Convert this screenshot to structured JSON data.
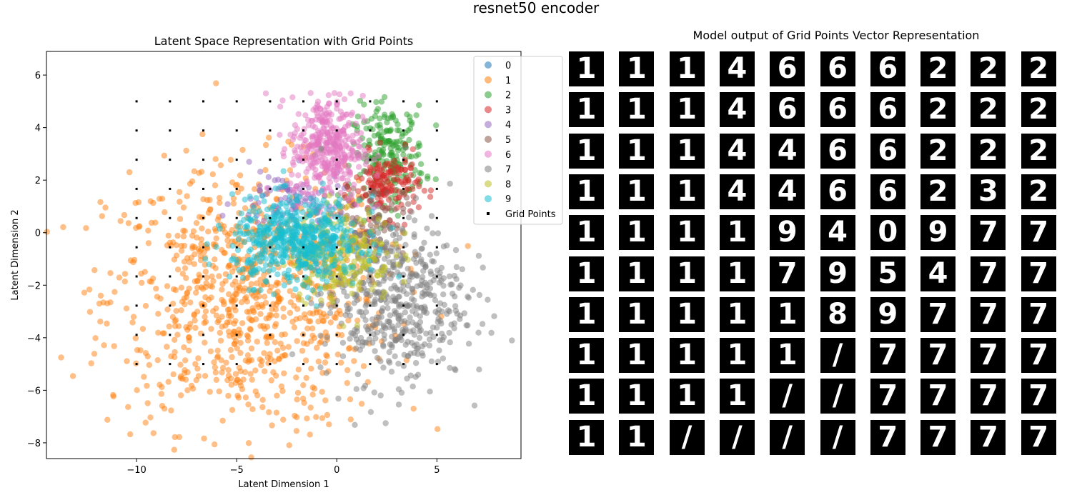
{
  "figure": {
    "suptitle": "resnet50 encoder"
  },
  "chart_data": [
    {
      "type": "scatter",
      "title": "Latent Space Representation with Grid Points",
      "xlabel": "Latent Dimension 1",
      "ylabel": "Latent Dimension 2",
      "xlim": [
        -14.5,
        9.2
      ],
      "ylim": [
        -8.6,
        6.9
      ],
      "xticks": [
        -10,
        -5,
        0,
        5
      ],
      "yticks": [
        -8,
        -6,
        -4,
        -2,
        0,
        2,
        4,
        6
      ],
      "grid": false,
      "legend_position": "top-right",
      "series": [
        {
          "name": "0",
          "color": "#1f77b4",
          "center": [
            0.5,
            -0.3
          ],
          "spread": [
            1.0,
            1.0
          ],
          "count": 10
        },
        {
          "name": "1",
          "color": "#ff7f0e",
          "center": [
            -4.5,
            -2.5
          ],
          "spread": [
            3.5,
            2.5
          ],
          "count": 900
        },
        {
          "name": "2",
          "color": "#2ca02c",
          "center": [
            2.6,
            3.0
          ],
          "spread": [
            0.9,
            0.9
          ],
          "count": 220
        },
        {
          "name": "3",
          "color": "#d62728",
          "center": [
            2.5,
            1.8
          ],
          "spread": [
            0.8,
            0.6
          ],
          "count": 160
        },
        {
          "name": "4",
          "color": "#9467bd",
          "center": [
            -2.3,
            1.2
          ],
          "spread": [
            1.4,
            0.6
          ],
          "count": 90
        },
        {
          "name": "5",
          "color": "#8c564b",
          "center": [
            1.8,
            0.5
          ],
          "spread": [
            0.8,
            0.7
          ],
          "count": 80
        },
        {
          "name": "6",
          "color": "#e377c2",
          "center": [
            -0.5,
            3.2
          ],
          "spread": [
            0.9,
            1.0
          ],
          "count": 380
        },
        {
          "name": "7",
          "color": "#7f7f7f",
          "center": [
            2.8,
            -2.5
          ],
          "spread": [
            1.8,
            1.6
          ],
          "count": 520
        },
        {
          "name": "8",
          "color": "#bcbd22",
          "center": [
            0.2,
            -0.8
          ],
          "spread": [
            1.3,
            0.9
          ],
          "count": 230
        },
        {
          "name": "9",
          "color": "#17becf",
          "center": [
            -2.0,
            -0.3
          ],
          "spread": [
            1.6,
            0.8
          ],
          "count": 560
        }
      ],
      "grid_points": {
        "name": "Grid Points",
        "color": "#000000",
        "x": [
          -10,
          -8.333,
          -6.667,
          -5,
          -3.333,
          -1.667,
          0,
          1.667,
          3.333,
          5
        ],
        "y": [
          -5,
          -3.889,
          -2.778,
          -1.667,
          -0.556,
          0.556,
          1.667,
          2.778,
          3.889,
          5
        ]
      }
    },
    {
      "type": "image_grid",
      "title": "Model output of Grid Points Vector Representation",
      "rows": 10,
      "cols": 10,
      "digits": [
        [
          "1",
          "1",
          "1",
          "4",
          "6",
          "6",
          "6",
          "2",
          "2",
          "2"
        ],
        [
          "1",
          "1",
          "1",
          "4",
          "6",
          "6",
          "6",
          "2",
          "2",
          "2"
        ],
        [
          "1",
          "1",
          "1",
          "4",
          "4",
          "6",
          "6",
          "2",
          "2",
          "2"
        ],
        [
          "1",
          "1",
          "1",
          "4",
          "4",
          "6",
          "6",
          "2",
          "3",
          "2"
        ],
        [
          "1",
          "1",
          "1",
          "1",
          "9",
          "4",
          "0",
          "9",
          "7",
          "7"
        ],
        [
          "1",
          "1",
          "1",
          "1",
          "7",
          "9",
          "5",
          "4",
          "7",
          "7"
        ],
        [
          "1",
          "1",
          "1",
          "1",
          "1",
          "8",
          "9",
          "7",
          "7",
          "7"
        ],
        [
          "1",
          "1",
          "1",
          "1",
          "1",
          "/",
          "7",
          "7",
          "7",
          "7"
        ],
        [
          "1",
          "1",
          "1",
          "1",
          "/",
          "/",
          "7",
          "7",
          "7",
          "7"
        ],
        [
          "1",
          "1",
          "/",
          "/",
          "/",
          "/",
          "7",
          "7",
          "7",
          "7"
        ]
      ]
    }
  ]
}
